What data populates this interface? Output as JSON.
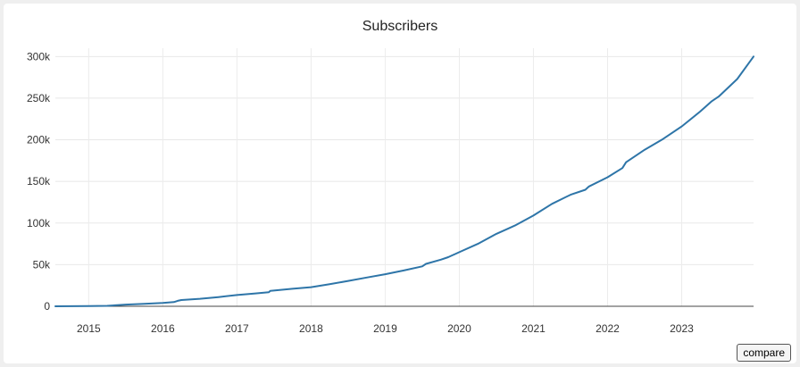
{
  "chart_data": {
    "type": "line",
    "title": "Subscribers",
    "xlabel": "",
    "ylabel": "",
    "xlim": [
      2014.55,
      2023.97
    ],
    "ylim": [
      0,
      310000
    ],
    "x_ticks": [
      2015,
      2016,
      2017,
      2018,
      2019,
      2020,
      2021,
      2022,
      2023
    ],
    "y_ticks": [
      {
        "value": 0,
        "label": "0"
      },
      {
        "value": 50000,
        "label": "50k"
      },
      {
        "value": 100000,
        "label": "100k"
      },
      {
        "value": 150000,
        "label": "150k"
      },
      {
        "value": 200000,
        "label": "200k"
      },
      {
        "value": 250000,
        "label": "250k"
      },
      {
        "value": 300000,
        "label": "300k"
      }
    ],
    "grid": true,
    "legend": "none",
    "line_color": "#2e75a8",
    "series": [
      {
        "x": [
          2014.55,
          2015.0,
          2015.25,
          2015.5,
          2015.75,
          2016.0,
          2016.15,
          2016.2,
          2016.25,
          2016.5,
          2016.75,
          2017.0,
          2017.25,
          2017.43,
          2017.45,
          2017.75,
          2018.0,
          2018.25,
          2018.5,
          2018.75,
          2019.0,
          2019.25,
          2019.5,
          2019.55,
          2019.75,
          2019.85,
          2020.0,
          2020.25,
          2020.5,
          2020.75,
          2021.0,
          2021.25,
          2021.5,
          2021.7,
          2021.75,
          2022.0,
          2022.2,
          2022.25,
          2022.5,
          2022.75,
          2023.0,
          2023.25,
          2023.4,
          2023.5,
          2023.75,
          2023.97
        ],
        "y": [
          0,
          200,
          500,
          2000,
          3000,
          4000,
          5000,
          6500,
          7500,
          9000,
          11000,
          13500,
          15500,
          17000,
          18500,
          21000,
          23000,
          26500,
          30500,
          34500,
          38500,
          43000,
          48000,
          51000,
          56000,
          59000,
          65000,
          75000,
          87000,
          97000,
          109000,
          123000,
          134000,
          140000,
          144000,
          155000,
          166000,
          173000,
          188000,
          201000,
          216000,
          234000,
          246000,
          252000,
          273000,
          300000
        ]
      }
    ]
  },
  "controls": {
    "compare_label": "compare"
  }
}
